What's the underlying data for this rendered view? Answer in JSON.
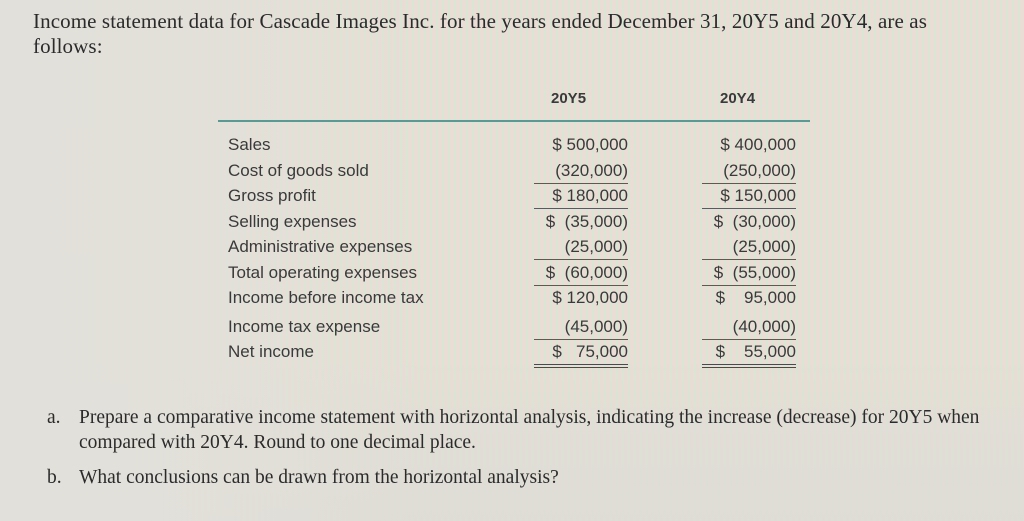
{
  "intro": {
    "text": "Income statement data for Cascade Images Inc. for the years ended December 31, 20Y5 and 20Y4, are as follows:"
  },
  "table": {
    "columns": [
      "",
      "20Y5",
      "20Y4"
    ],
    "rows": [
      {
        "label": "Sales",
        "y5": "$ 500,000",
        "y4": "$ 400,000",
        "underline": "none"
      },
      {
        "label": "Cost of goods sold",
        "y5": "(320,000)",
        "y4": "(250,000)",
        "underline": "single"
      },
      {
        "label": "Gross profit",
        "y5": "$ 180,000",
        "y4": "$ 150,000",
        "underline": "single"
      },
      {
        "label": "Selling expenses",
        "y5": "$  (35,000)",
        "y4": "$  (30,000)",
        "underline": "none"
      },
      {
        "label": "Administrative expenses",
        "y5": "(25,000)",
        "y4": "(25,000)",
        "underline": "single"
      },
      {
        "label": "Total operating expenses",
        "y5": "$  (60,000)",
        "y4": "$  (55,000)",
        "underline": "single"
      },
      {
        "label": "Income before income tax",
        "y5": "$ 120,000",
        "y4": "$    95,000",
        "underline": "none"
      },
      {
        "label": "Income tax expense",
        "y5": "(45,000)",
        "y4": "(40,000)",
        "underline": "single"
      },
      {
        "label": "Net income",
        "y5": "$   75,000",
        "y4": "$    55,000",
        "underline": "double"
      }
    ]
  },
  "questions": [
    {
      "label": "a.",
      "text": "Prepare a comparative income statement with horizontal analysis, indicating the increase (decrease) for 20Y5 when compared with 20Y4. Round to one decimal place."
    },
    {
      "label": "b.",
      "text": "What conclusions can be drawn from the horizontal analysis?"
    }
  ],
  "colors": {
    "header_rule": "#5a9a94",
    "text": "#2b2b2b",
    "stripe_pink": "#e9ddd5",
    "stripe_green": "#d9e6d4"
  }
}
